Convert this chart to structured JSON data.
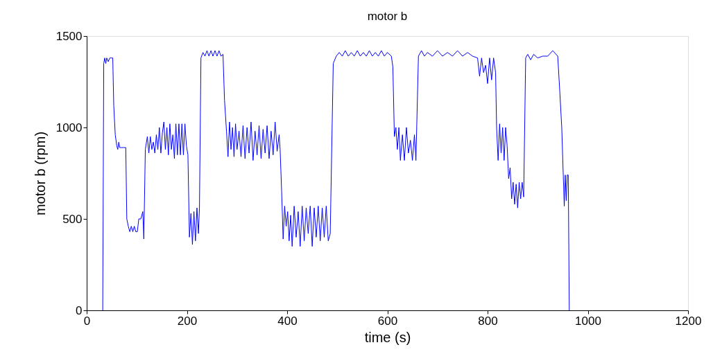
{
  "chart_data": {
    "type": "line",
    "title": "motor b",
    "xlabel": "time (s)",
    "ylabel": "motor b (rpm)",
    "x": [
      32,
      34,
      36,
      38,
      40,
      43,
      46,
      49,
      52,
      54,
      57,
      60,
      62,
      64,
      66,
      70,
      74,
      78,
      80,
      83,
      86,
      89,
      92,
      95,
      98,
      101,
      104,
      108,
      112,
      114,
      117,
      121,
      124,
      127,
      130,
      133,
      136,
      139,
      142,
      145,
      148,
      151,
      154,
      157,
      160,
      163,
      166,
      169,
      172,
      175,
      178,
      181,
      184,
      187,
      190,
      193,
      196,
      199,
      202,
      205,
      208,
      211,
      214,
      217,
      220,
      223,
      225,
      228,
      232,
      236,
      240,
      244,
      248,
      252,
      256,
      260,
      264,
      268,
      272,
      275,
      279,
      282,
      285,
      288,
      291,
      294,
      297,
      300,
      304,
      308,
      312,
      316,
      320,
      324,
      328,
      332,
      336,
      340,
      344,
      348,
      352,
      356,
      360,
      364,
      368,
      372,
      376,
      380,
      384,
      386,
      389,
      392,
      395,
      398,
      401,
      404,
      407,
      410,
      414,
      418,
      422,
      426,
      430,
      434,
      438,
      442,
      446,
      450,
      454,
      458,
      462,
      466,
      470,
      474,
      478,
      482,
      486,
      492,
      498,
      504,
      510,
      516,
      522,
      528,
      534,
      540,
      546,
      552,
      558,
      564,
      570,
      576,
      582,
      588,
      594,
      600,
      608,
      611,
      614,
      617,
      620,
      623,
      626,
      630,
      634,
      638,
      642,
      646,
      650,
      654,
      657,
      662,
      668,
      674,
      680,
      690,
      700,
      710,
      720,
      730,
      740,
      750,
      760,
      770,
      780,
      784,
      788,
      792,
      796,
      800,
      804,
      808,
      812,
      816,
      818,
      821,
      824,
      827,
      830,
      833,
      836,
      839,
      842,
      845,
      848,
      851,
      854,
      857,
      860,
      863,
      866,
      869,
      872,
      876,
      880,
      886,
      892,
      900,
      910,
      920,
      930,
      940,
      944,
      948,
      951,
      953,
      955,
      957,
      959,
      961,
      963
    ],
    "series": [
      {
        "color": "#0000ff",
        "values": [
          0,
          1350,
          1380,
          1350,
          1380,
          1360,
          1380,
          1380,
          1380,
          1120,
          960,
          900,
          880,
          920,
          890,
          890,
          890,
          890,
          500,
          460,
          430,
          460,
          430,
          460,
          430,
          430,
          500,
          500,
          540,
          390,
          880,
          950,
          860,
          950,
          880,
          920,
          860,
          960,
          880,
          1000,
          860,
          970,
          1030,
          880,
          1000,
          850,
          1020,
          880,
          960,
          830,
          1020,
          850,
          1020,
          850,
          1020,
          850,
          1020,
          900,
          850,
          400,
          530,
          360,
          540,
          380,
          560,
          420,
          560,
          1380,
          1410,
          1390,
          1420,
          1390,
          1420,
          1390,
          1420,
          1390,
          1420,
          1390,
          1400,
          1150,
          980,
          840,
          1030,
          880,
          1000,
          840,
          1020,
          880,
          980,
          840,
          1010,
          830,
          1000,
          860,
          1030,
          820,
          980,
          850,
          1010,
          830,
          990,
          860,
          1010,
          830,
          980,
          850,
          1030,
          870,
          960,
          880,
          650,
          390,
          570,
          460,
          540,
          380,
          520,
          350,
          570,
          400,
          540,
          350,
          570,
          380,
          560,
          420,
          570,
          350,
          560,
          400,
          570,
          380,
          560,
          400,
          570,
          380,
          420,
          1350,
          1390,
          1410,
          1390,
          1420,
          1390,
          1410,
          1390,
          1420,
          1390,
          1410,
          1390,
          1420,
          1390,
          1410,
          1390,
          1420,
          1390,
          1410,
          1390,
          1330,
          950,
          1000,
          880,
          1000,
          820,
          960,
          820,
          1000,
          860,
          930,
          820,
          960,
          820,
          1390,
          1420,
          1390,
          1410,
          1390,
          1420,
          1390,
          1410,
          1390,
          1420,
          1390,
          1410,
          1390,
          1380,
          1280,
          1380,
          1300,
          1340,
          1240,
          1380,
          1260,
          1380,
          1300,
          1000,
          820,
          1020,
          860,
          1000,
          820,
          1000,
          900,
          720,
          780,
          610,
          700,
          580,
          690,
          560,
          700,
          610,
          700,
          620,
          1380,
          1400,
          1370,
          1400,
          1380,
          1390,
          1390,
          1420,
          1390,
          1200,
          1000,
          740,
          570,
          740,
          600,
          740,
          740,
          0
        ]
      }
    ],
    "xlim": [
      0,
      1200
    ],
    "xticks": [
      0,
      200,
      400,
      600,
      800,
      1000,
      1200
    ],
    "ylim": [
      0,
      1500
    ],
    "yticks": [
      0,
      500,
      1000,
      1500
    ],
    "grid": false,
    "marker": "none",
    "line_style": "solid"
  }
}
